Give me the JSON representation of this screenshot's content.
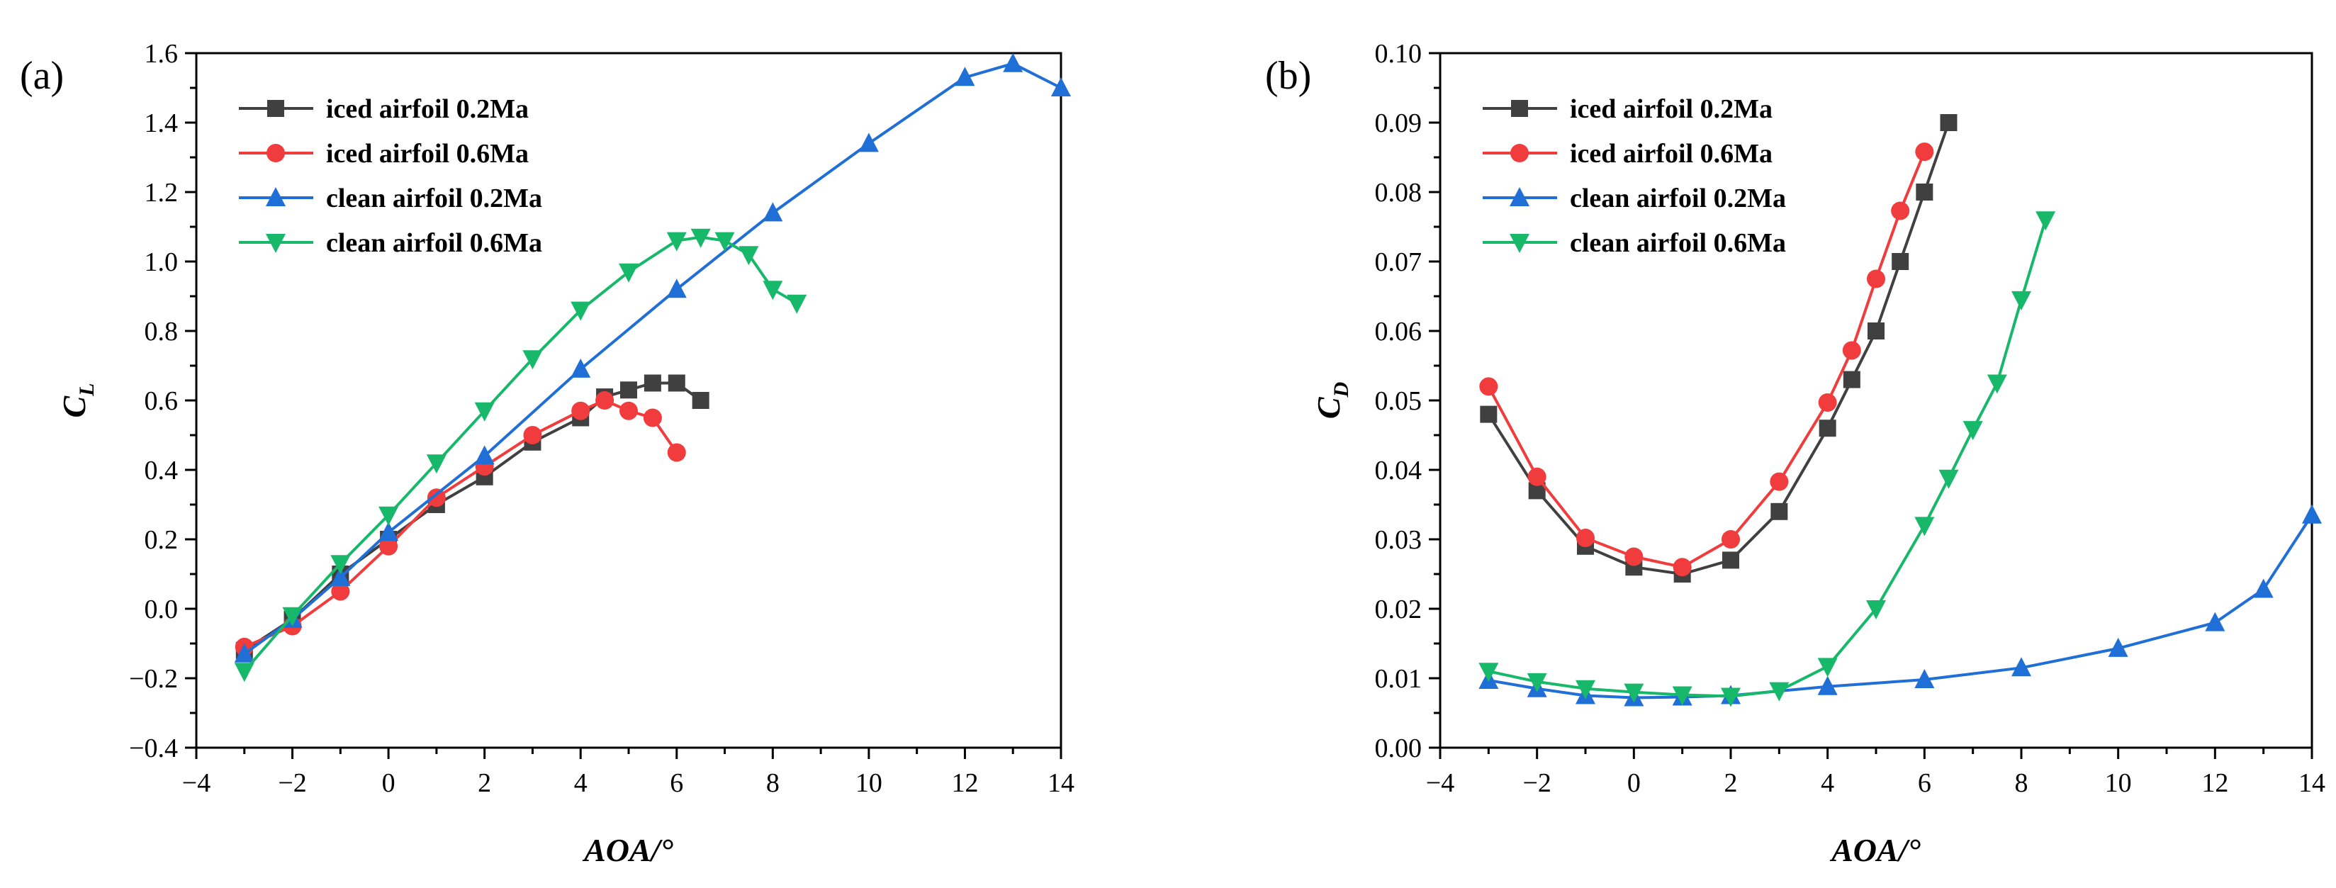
{
  "chart_data": [
    {
      "type": "line",
      "panel_label": "(a)",
      "xlabel": "AOA/°",
      "ylabel": "C",
      "ylabel_subscript": "L",
      "xlim": [
        -4,
        14
      ],
      "ylim": [
        -0.4,
        1.6
      ],
      "x_ticks": [
        "−4",
        "−2",
        "0",
        "2",
        "4",
        "6",
        "8",
        "10",
        "12",
        "14"
      ],
      "y_ticks": [
        "−0.4",
        "−0.2",
        "0.0",
        "0.2",
        "0.4",
        "0.6",
        "0.8",
        "1.0",
        "1.2",
        "1.4",
        "1.6"
      ],
      "legend_position": "top-left",
      "series": [
        {
          "name": "iced airfoil 0.2Ma",
          "color": "#404040",
          "marker": "square",
          "x": [
            -3,
            -2,
            -1,
            0,
            1,
            2,
            3,
            4,
            4.5,
            5,
            5.5,
            6,
            6.5
          ],
          "y": [
            -0.12,
            -0.03,
            0.1,
            0.2,
            0.3,
            0.38,
            0.48,
            0.55,
            0.61,
            0.63,
            0.65,
            0.65,
            0.6
          ]
        },
        {
          "name": "iced airfoil 0.6Ma",
          "color": "#f03c3c",
          "marker": "circle",
          "x": [
            -3,
            -2,
            -1,
            0,
            1,
            2,
            3,
            4,
            4.5,
            5,
            5.5,
            6
          ],
          "y": [
            -0.11,
            -0.05,
            0.05,
            0.18,
            0.32,
            0.41,
            0.5,
            0.57,
            0.6,
            0.57,
            0.55,
            0.45
          ]
        },
        {
          "name": "clean airfoil 0.2Ma",
          "color": "#1f6fd6",
          "marker": "triangle-up",
          "x": [
            -3,
            -2,
            -1,
            0,
            2,
            4,
            6,
            8,
            10,
            12,
            13,
            14
          ],
          "y": [
            -0.13,
            -0.03,
            0.09,
            0.22,
            0.44,
            0.69,
            0.92,
            1.14,
            1.34,
            1.53,
            1.57,
            1.5
          ]
        },
        {
          "name": "clean airfoil 0.6Ma",
          "color": "#18b86a",
          "marker": "triangle-down",
          "x": [
            -3,
            -2,
            -1,
            0,
            1,
            2,
            3,
            4,
            5,
            6,
            6.5,
            7,
            7.5,
            8,
            8.5
          ],
          "y": [
            -0.18,
            -0.02,
            0.13,
            0.27,
            0.42,
            0.57,
            0.72,
            0.86,
            0.97,
            1.06,
            1.07,
            1.06,
            1.02,
            0.92,
            0.88
          ]
        }
      ]
    },
    {
      "type": "line",
      "panel_label": "(b)",
      "xlabel": "AOA/°",
      "ylabel": "C",
      "ylabel_subscript": "D",
      "xlim": [
        -4,
        14
      ],
      "ylim": [
        0,
        0.1
      ],
      "x_ticks": [
        "−4",
        "−2",
        "0",
        "2",
        "4",
        "6",
        "8",
        "10",
        "12",
        "14"
      ],
      "y_ticks": [
        "0.00",
        "0.01",
        "0.02",
        "0.03",
        "0.04",
        "0.05",
        "0.06",
        "0.07",
        "0.08",
        "0.09",
        "0.10"
      ],
      "legend_position": "top-left",
      "series": [
        {
          "name": "iced airfoil 0.2Ma",
          "color": "#404040",
          "marker": "square",
          "x": [
            -3,
            -2,
            -1,
            0,
            1,
            2,
            3,
            4,
            4.5,
            5,
            5.5,
            6,
            6.5
          ],
          "y": [
            0.048,
            0.037,
            0.029,
            0.026,
            0.025,
            0.027,
            0.034,
            0.046,
            0.053,
            0.06,
            0.07,
            0.08,
            0.09
          ]
        },
        {
          "name": "iced airfoil 0.6Ma",
          "color": "#f03c3c",
          "marker": "circle",
          "x": [
            -3,
            -2,
            -1,
            0,
            1,
            2,
            3,
            4,
            4.5,
            5,
            5.5,
            6
          ],
          "y": [
            0.052,
            0.039,
            0.0302,
            0.0275,
            0.026,
            0.03,
            0.0383,
            0.0497,
            0.0572,
            0.0675,
            0.0773,
            0.0858
          ]
        },
        {
          "name": "clean airfoil 0.2Ma",
          "color": "#1f6fd6",
          "marker": "triangle-up",
          "x": [
            -3,
            -2,
            -1,
            0,
            1,
            2,
            4,
            6,
            8,
            10,
            12,
            13,
            14
          ],
          "y": [
            0.0097,
            0.0085,
            0.0075,
            0.0072,
            0.0073,
            0.0075,
            0.0088,
            0.0098,
            0.0115,
            0.0143,
            0.018,
            0.0228,
            0.0335
          ]
        },
        {
          "name": "clean airfoil 0.6Ma",
          "color": "#18b86a",
          "marker": "triangle-down",
          "x": [
            -3,
            -2,
            -1,
            0,
            1,
            2,
            3,
            4,
            5,
            6,
            6.5,
            7,
            7.5,
            8,
            8.5
          ],
          "y": [
            0.011,
            0.0095,
            0.0085,
            0.008,
            0.0076,
            0.0074,
            0.0082,
            0.0117,
            0.02,
            0.032,
            0.0388,
            0.0458,
            0.0525,
            0.0645,
            0.076
          ]
        }
      ]
    }
  ]
}
